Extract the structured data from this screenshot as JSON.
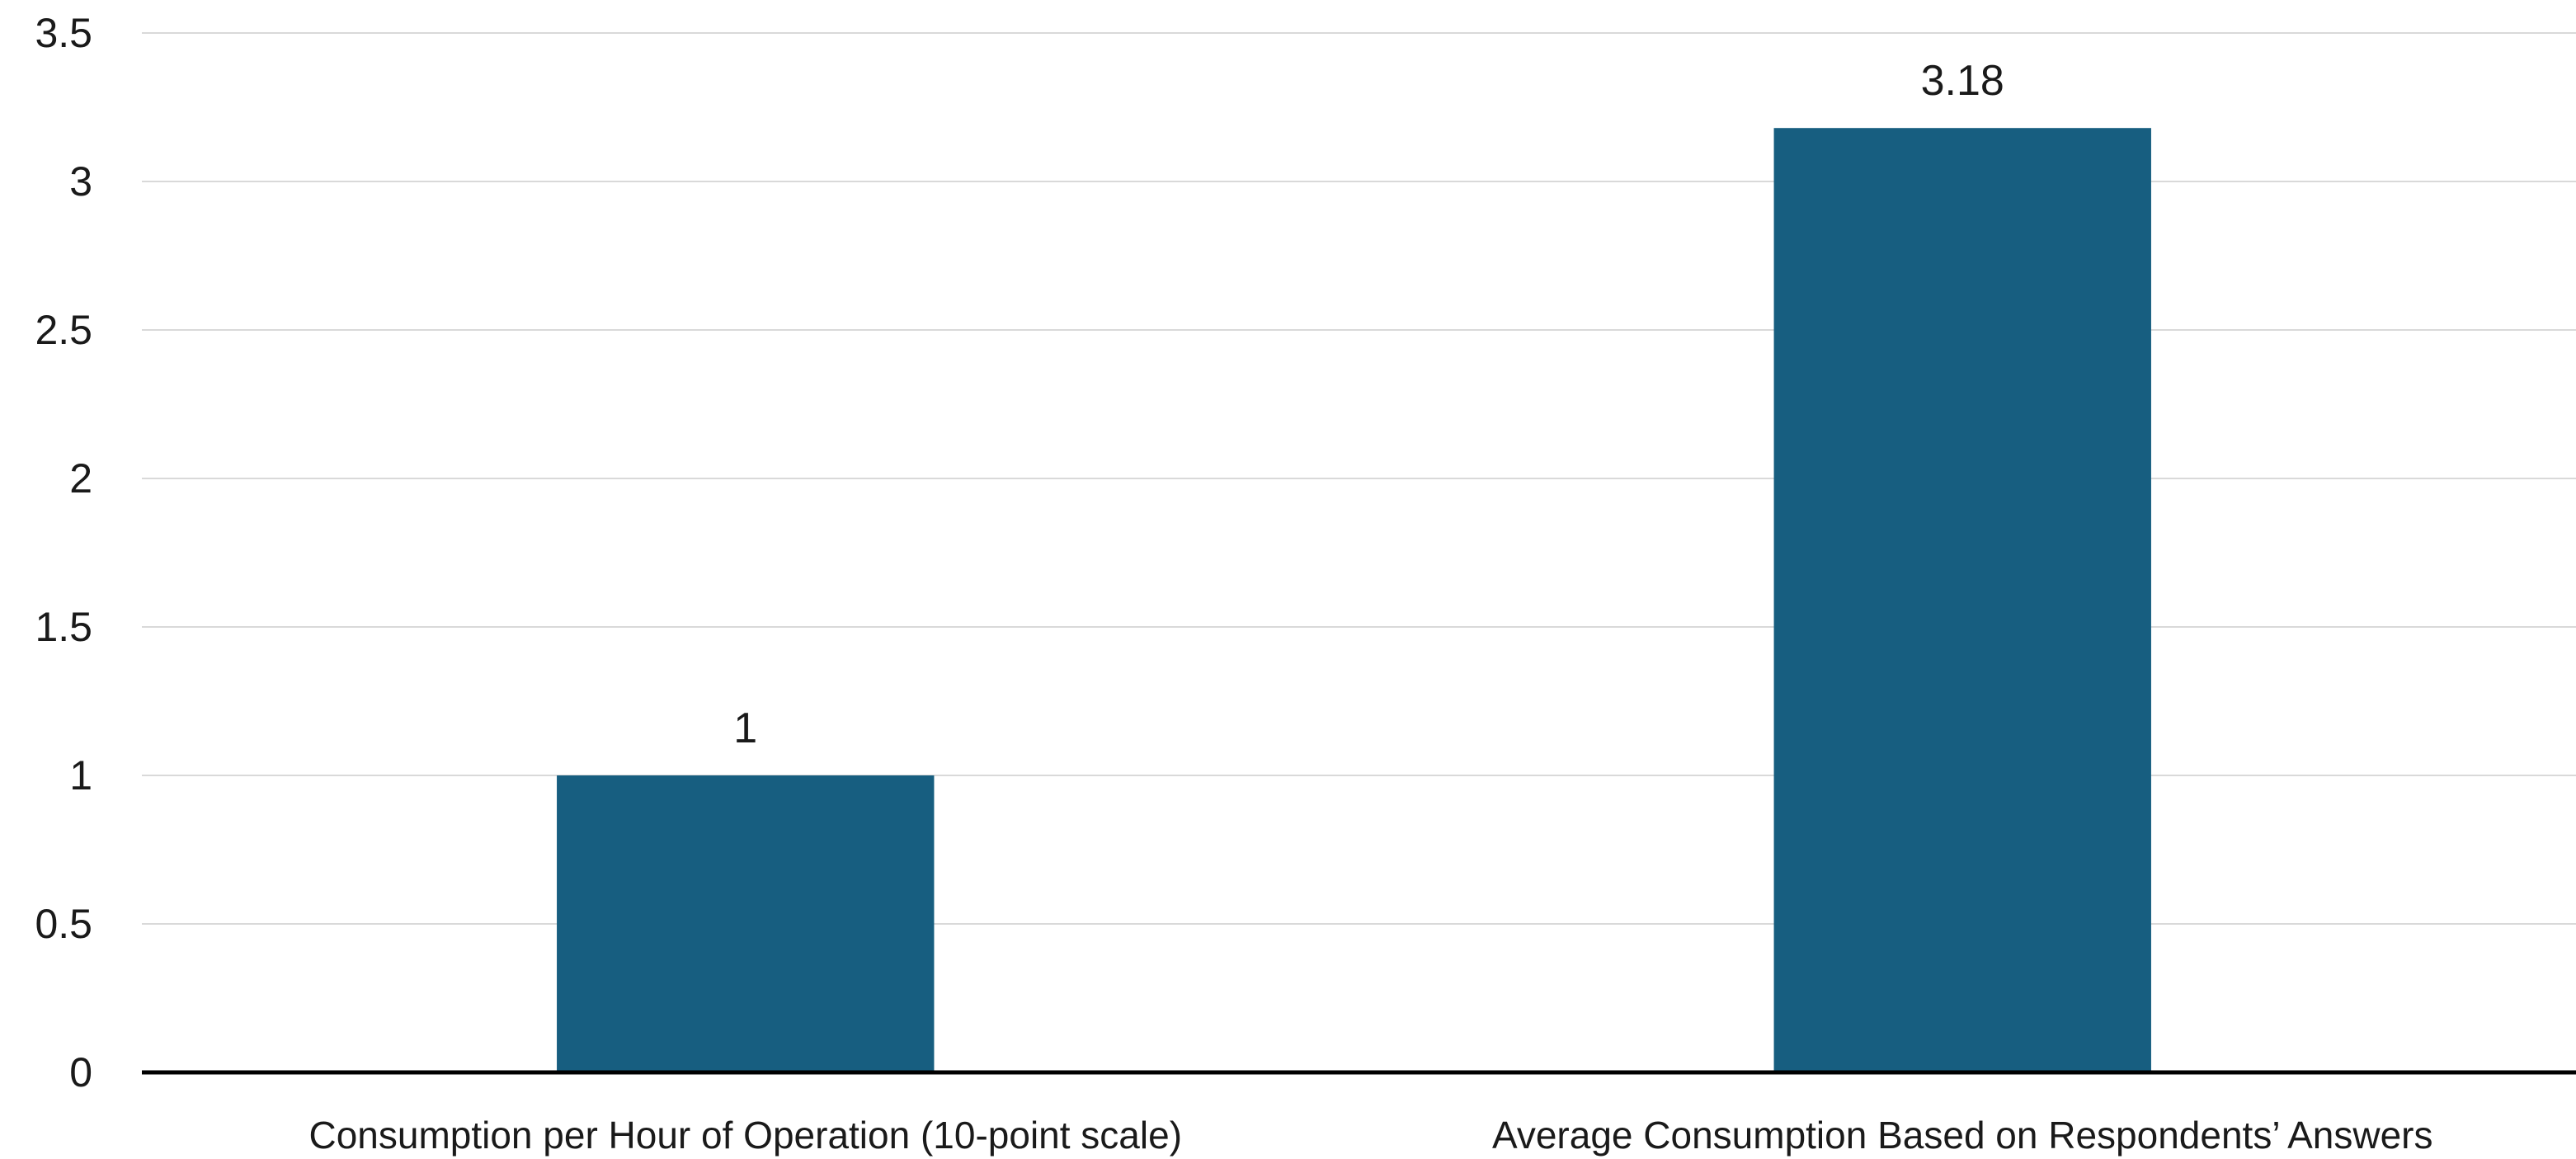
{
  "chart_data": {
    "type": "bar",
    "title": "",
    "xlabel": "",
    "ylabel": "",
    "categories": [
      "Consumption per Hour of Operation (10-point scale)",
      "Average Consumption Based on Respondents’ Answers"
    ],
    "values": [
      1,
      3.18
    ],
    "data_labels": [
      "1",
      "3.18"
    ],
    "ylim": [
      0,
      3.5
    ],
    "yticks": [
      0,
      0.5,
      1,
      1.5,
      2,
      2.5,
      3,
      3.5
    ],
    "ytick_labels": [
      "0",
      "0.5",
      "1",
      "1.5",
      "2",
      "2.5",
      "3",
      "3.5"
    ],
    "grid": true,
    "legend": "none",
    "bar_color": "#175e80"
  }
}
